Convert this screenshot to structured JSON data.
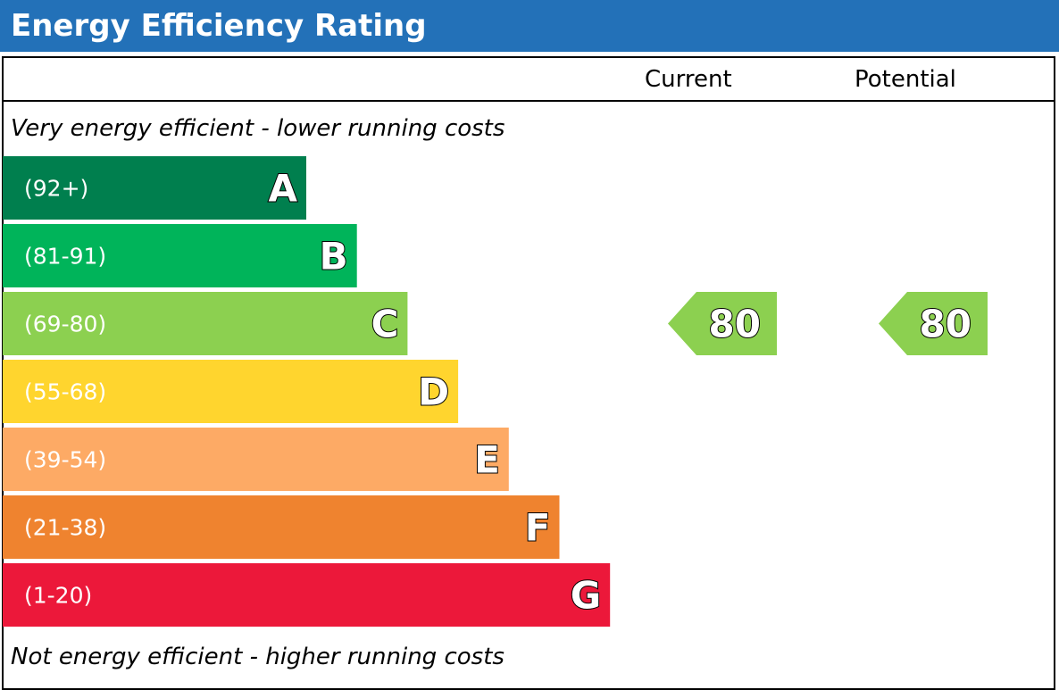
{
  "chart_data": {
    "type": "bar",
    "title": "Energy Efficiency Rating",
    "columns": [
      "Current",
      "Potential"
    ],
    "top_note": "Very energy efficient - lower running costs",
    "bottom_note": "Not energy efficient - higher running costs",
    "bands": [
      {
        "letter": "A",
        "range": "(92+)",
        "color": "#007f4e"
      },
      {
        "letter": "B",
        "range": "(81-91)",
        "color": "#00b45a"
      },
      {
        "letter": "C",
        "range": "(69-80)",
        "color": "#8cd050"
      },
      {
        "letter": "D",
        "range": "(55-68)",
        "color": "#ffd52e"
      },
      {
        "letter": "E",
        "range": "(39-54)",
        "color": "#fdaa65"
      },
      {
        "letter": "F",
        "range": "(21-38)",
        "color": "#ef832f"
      },
      {
        "letter": "G",
        "range": "(1-20)",
        "color": "#ec183a"
      }
    ],
    "ratings": {
      "current": {
        "value": 80,
        "band": "C",
        "color": "#8cd050"
      },
      "potential": {
        "value": 80,
        "band": "C",
        "color": "#8cd050"
      }
    }
  }
}
